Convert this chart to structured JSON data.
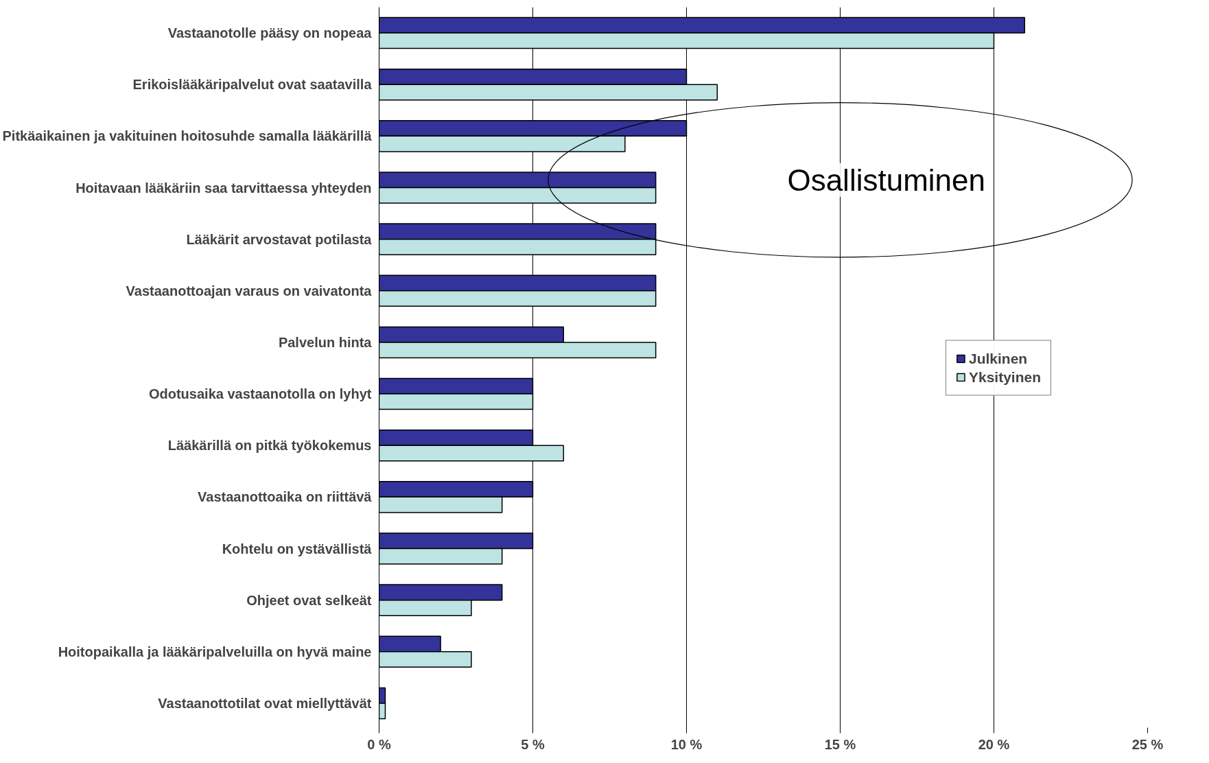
{
  "chart_data": {
    "type": "bar",
    "orientation": "horizontal",
    "categories": [
      "Vastaanotolle pääsy on nopeaa",
      "Erikoislääkäripalvelut ovat saatavilla",
      "Pitkäaikainen ja vakituinen hoitosuhde samalla lääkärillä",
      "Hoitavaan lääkäriin saa tarvittaessa yhteyden",
      "Lääkärit arvostavat potilasta",
      "Vastaanottoajan varaus on vaivatonta",
      "Palvelun hinta",
      "Odotusaika vastaanotolla on lyhyt",
      "Lääkärillä on pitkä työkokemus",
      "Vastaanottoaika on riittävä",
      "Kohtelu on ystävällistä",
      "Ohjeet ovat selkeät",
      "Hoitopaikalla ja lääkäripalveluilla on hyvä maine",
      "Vastaanottotilat ovat miellyttävät"
    ],
    "series": [
      {
        "name": "Julkinen",
        "color": "#333399",
        "values": [
          21,
          10,
          10,
          9,
          9,
          9,
          6,
          5,
          5,
          5,
          5,
          4,
          2,
          0.2
        ]
      },
      {
        "name": "Yksityinen",
        "color": "#bde3e3",
        "values": [
          20,
          11,
          8,
          9,
          9,
          9,
          9,
          5,
          6,
          4,
          4,
          3,
          3,
          0.2
        ]
      }
    ],
    "xlim": [
      0,
      25
    ],
    "xticks": [
      {
        "value": 0,
        "label": "0 %"
      },
      {
        "value": 5,
        "label": "5 %"
      },
      {
        "value": 10,
        "label": "10 %"
      },
      {
        "value": 15,
        "label": "15 %"
      },
      {
        "value": 20,
        "label": "20 %"
      },
      {
        "value": 25,
        "label": "25 %"
      }
    ],
    "grid": "x",
    "legend": "right",
    "annotations": [
      "Osallistuminen"
    ]
  }
}
